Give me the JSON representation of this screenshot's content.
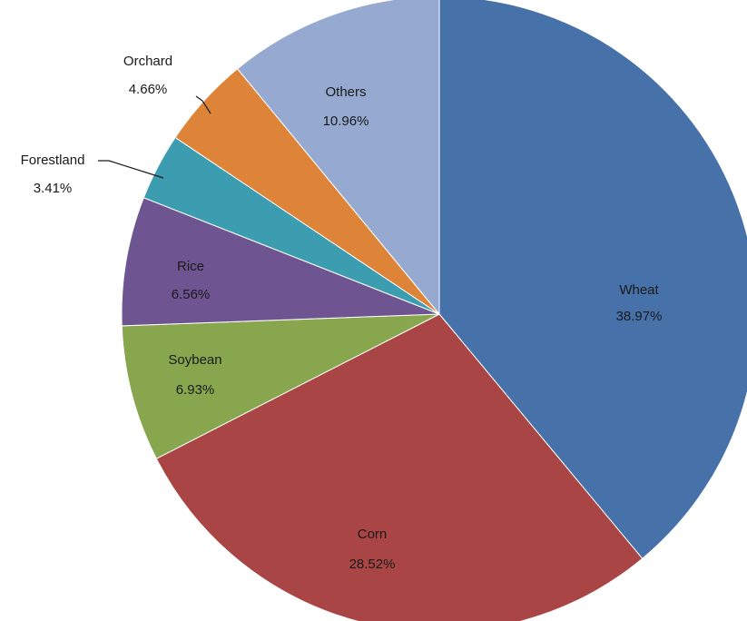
{
  "chart_data": {
    "type": "pie",
    "title": "",
    "slices": [
      {
        "label": "Wheat",
        "value_text": "38.97%",
        "value": 38.97,
        "color": "#4671A9"
      },
      {
        "label": "Corn",
        "value_text": "28.52%",
        "value": 28.52,
        "color": "#A94544"
      },
      {
        "label": "Soybean",
        "value_text": "6.93%",
        "value": 6.93,
        "color": "#87A64E"
      },
      {
        "label": "Rice",
        "value_text": "6.56%",
        "value": 6.56,
        "color": "#6E5591"
      },
      {
        "label": "Forestland",
        "value_text": "3.41%",
        "value": 3.41,
        "color": "#3C9DB1"
      },
      {
        "label": "Orchard",
        "value_text": "4.66%",
        "value": 4.66,
        "color": "#DE8439"
      },
      {
        "label": "Others",
        "value_text": "10.96%",
        "value": 10.96,
        "color": "#95A9D1"
      }
    ],
    "start": "12 o'clock",
    "direction": "clockwise",
    "legend": "none"
  }
}
